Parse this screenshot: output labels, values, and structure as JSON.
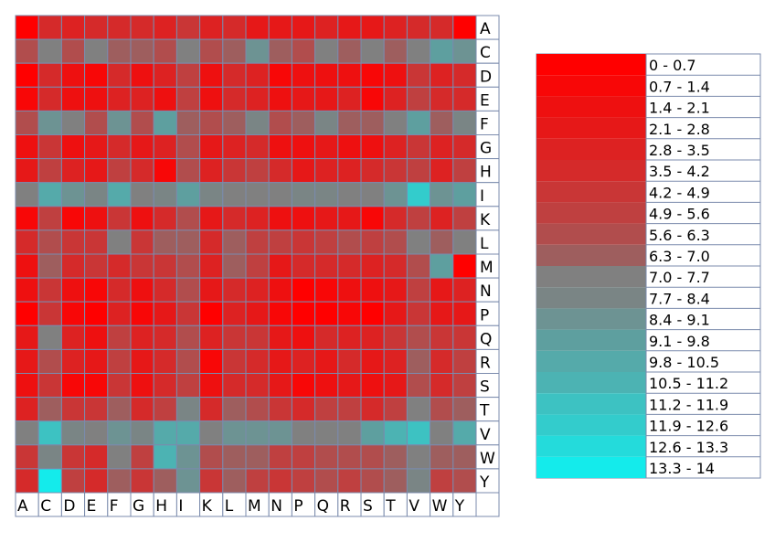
{
  "chart_data": {
    "type": "heatmap",
    "row_labels": [
      "A",
      "C",
      "D",
      "E",
      "F",
      "G",
      "H",
      "I",
      "K",
      "L",
      "M",
      "N",
      "P",
      "Q",
      "R",
      "S",
      "T",
      "V",
      "W",
      "Y"
    ],
    "col_labels": [
      "A",
      "C",
      "D",
      "E",
      "F",
      "G",
      "H",
      "I",
      "K",
      "L",
      "M",
      "N",
      "P",
      "Q",
      "R",
      "S",
      "T",
      "V",
      "W",
      "Y"
    ],
    "values": [
      [
        0.3,
        3.9,
        2.8,
        3.5,
        3.5,
        3.5,
        3.0,
        4.8,
        2.8,
        3.8,
        2.2,
        2.7,
        2.2,
        3.2,
        2.2,
        2.3,
        2.8,
        4.0,
        4.0,
        0.3
      ],
      [
        5.9,
        7.4,
        6.1,
        7.0,
        6.3,
        6.4,
        6.1,
        7.0,
        6.1,
        6.8,
        8.7,
        6.3,
        5.8,
        7.0,
        6.5,
        7.0,
        6.4,
        7.5,
        9.1,
        8.4
      ],
      [
        0.5,
        3.6,
        1.5,
        0.7,
        3.5,
        1.9,
        3.3,
        5.2,
        1.7,
        3.7,
        3.4,
        0.8,
        1.7,
        1.4,
        1.5,
        1.0,
        1.5,
        4.2,
        2.8,
        3.8
      ],
      [
        1.2,
        3.9,
        1.8,
        1.4,
        3.2,
        2.9,
        1.9,
        5.4,
        1.6,
        3.6,
        3.3,
        1.7,
        2.4,
        2.6,
        2.8,
        1.2,
        2.9,
        4.9,
        3.6,
        4.1
      ],
      [
        5.9,
        8.6,
        7.0,
        5.8,
        8.8,
        6.1,
        9.3,
        6.8,
        6.2,
        6.9,
        7.8,
        6.2,
        6.3,
        7.7,
        6.7,
        6.4,
        7.0,
        9.2,
        6.3,
        7.8
      ],
      [
        1.6,
        4.8,
        1.9,
        2.6,
        3.8,
        2.7,
        3.3,
        5.7,
        2.5,
        3.3,
        3.9,
        1.8,
        1.6,
        2.3,
        1.7,
        1.9,
        3.2,
        4.4,
        2.8,
        3.6
      ],
      [
        2.5,
        5.2,
        2.8,
        2.6,
        4.9,
        3.5,
        1.2,
        5.8,
        3.2,
        4.6,
        4.9,
        3.8,
        2.6,
        3.3,
        3.4,
        3.5,
        4.2,
        5.0,
        3.4,
        4.9
      ],
      [
        7.4,
        10.2,
        8.5,
        8.0,
        10.1,
        7.5,
        8.2,
        9.3,
        7.7,
        7.5,
        7.5,
        7.6,
        8.1,
        7.8,
        7.4,
        7.2,
        8.5,
        12.3,
        8.9,
        9.5
      ],
      [
        1.2,
        4.9,
        1.1,
        1.7,
        4.4,
        1.9,
        3.5,
        5.8,
        2.1,
        3.5,
        3.4,
        1.4,
        1.6,
        2.6,
        2.4,
        1.1,
        3.5,
        5.3,
        3.3,
        5.1
      ],
      [
        3.8,
        6.0,
        4.8,
        4.7,
        7.3,
        4.8,
        6.3,
        6.8,
        4.1,
        6.8,
        5.2,
        5.5,
        4.7,
        5.3,
        5.6,
        4.9,
        5.6,
        7.1,
        6.5,
        7.0
      ],
      [
        1.6,
        6.9,
        3.9,
        4.7,
        4.0,
        4.6,
        4.3,
        5.6,
        3.4,
        6.5,
        5.1,
        2.7,
        4.0,
        3.5,
        3.8,
        2.9,
        3.9,
        5.9,
        9.2,
        0.3
      ],
      [
        1.8,
        4.6,
        1.7,
        1.1,
        3.9,
        1.5,
        3.5,
        5.7,
        2.1,
        3.7,
        3.2,
        1.5,
        0.5,
        1.3,
        1.9,
        1.6,
        2.7,
        5.4,
        2.1,
        3.4
      ],
      [
        0.4,
        4.2,
        0.7,
        0.4,
        3.2,
        1.1,
        2.5,
        4.3,
        0.6,
        3.1,
        2.5,
        0.8,
        0.6,
        0.5,
        0.8,
        0.5,
        2.1,
        4.6,
        2.2,
        2.4
      ],
      [
        2.3,
        7.2,
        2.9,
        2.0,
        5.2,
        3.3,
        3.6,
        5.9,
        2.8,
        4.4,
        4.2,
        2.1,
        1.4,
        3.7,
        2.8,
        2.9,
        4.4,
        6.2,
        4.2,
        4.6
      ],
      [
        2.2,
        6.0,
        2.9,
        2.7,
        4.9,
        2.6,
        3.8,
        5.9,
        1.2,
        4.5,
        3.7,
        2.4,
        2.9,
        2.7,
        4.1,
        2.6,
        3.4,
        6.5,
        4.0,
        5.2
      ],
      [
        1.5,
        4.6,
        1.3,
        1.3,
        4.6,
        2.0,
        3.8,
        4.9,
        1.6,
        3.6,
        3.7,
        2.2,
        1.1,
        1.7,
        2.4,
        2.0,
        2.5,
        5.7,
        3.8,
        5.1
      ],
      [
        3.0,
        6.3,
        4.3,
        4.4,
        6.9,
        4.1,
        5.2,
        7.9,
        4.1,
        6.7,
        5.6,
        4.5,
        3.6,
        5.3,
        5.1,
        4.1,
        4.9,
        7.6,
        6.1,
        6.8
      ],
      [
        7.3,
        11.5,
        8.0,
        7.5,
        8.9,
        7.8,
        10.4,
        9.9,
        7.6,
        8.4,
        8.4,
        8.6,
        7.0,
        7.4,
        7.5,
        9.2,
        10.5,
        11.4,
        7.5,
        10.0
      ],
      [
        4.8,
        8.0,
        4.7,
        4.0,
        7.5,
        5.2,
        10.8,
        8.5,
        5.6,
        6.6,
        6.6,
        5.3,
        4.9,
        5.6,
        5.6,
        5.8,
        6.8,
        7.5,
        6.4,
        6.7
      ],
      [
        3.6,
        13.6,
        5.2,
        3.8,
        6.4,
        4.7,
        6.3,
        8.4,
        4.8,
        6.5,
        5.0,
        4.3,
        5.3,
        5.9,
        4.9,
        5.9,
        6.8,
        7.7,
        5.1,
        5.6
      ]
    ],
    "legend": {
      "ranges": [
        "0 - 0.7",
        "0.7 - 1.4",
        "1.4 - 2.1",
        "2.1 - 2.8",
        "2.8 - 3.5",
        "3.5 - 4.2",
        "4.2 - 4.9",
        "4.9 - 5.6",
        "5.6 - 6.3",
        "6.3 - 7.0",
        "7.0 - 7.7",
        "7.7 - 8.4",
        "8.4 - 9.1",
        "9.1 - 9.8",
        "9.8 - 10.5",
        "10.5 - 11.2",
        "11.2 - 11.9",
        "11.9 - 12.6",
        "12.6 - 13.3",
        "13.3 - 14"
      ],
      "colors": [
        "#ff0000",
        "#f80707",
        "#ee1010",
        "#e61818",
        "#dd2222",
        "#d52a2a",
        "#c93636",
        "#bf4040",
        "#b14d4d",
        "#9e5e5e",
        "#808080",
        "#7a8585",
        "#6d9393",
        "#5e9f9f",
        "#55aaaa",
        "#4cb3b3",
        "#3dc2c2",
        "#33cccc",
        "#24dbdb",
        "#14ebeb"
      ],
      "min": 0,
      "max": 14,
      "bin_width": 0.7
    }
  }
}
